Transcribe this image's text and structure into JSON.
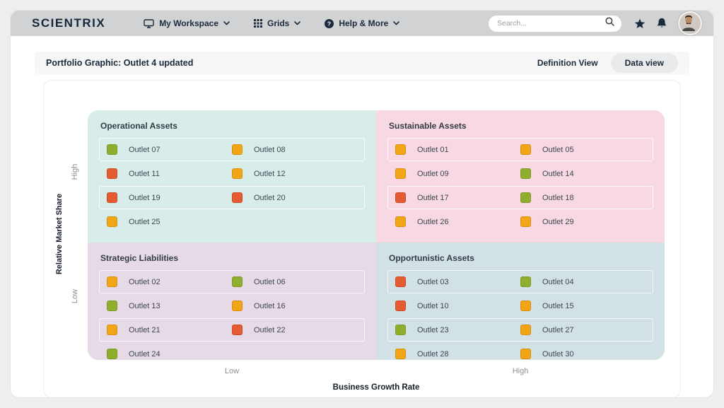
{
  "nav": {
    "logo": "SCIENTRIX",
    "items": [
      {
        "label": "My Workspace",
        "icon": "monitor-icon"
      },
      {
        "label": "Grids",
        "icon": "grid-icon"
      },
      {
        "label": "Help & More",
        "icon": "help-icon"
      }
    ],
    "search_placeholder": "Search..."
  },
  "header": {
    "title": "Portfolio Graphic: Outlet 4 updated",
    "definition_view_label": "Definition View",
    "data_view_label": "Data view"
  },
  "axes": {
    "y_label": "Relative Market Share",
    "y_high": "High",
    "y_low": "Low",
    "x_label": "Business Growth Rate",
    "x_low": "Low",
    "x_high": "High"
  },
  "colors": {
    "green": "#8fae2e",
    "green_border": "#7d9a26",
    "orange": "#f2a516",
    "orange_border": "#d88f0e",
    "red": "#e55c33",
    "red_border": "#cc4b27",
    "accent_dark": "#1b2b3d"
  },
  "quadrants": [
    {
      "title": "Operational Assets",
      "position": "top-left",
      "bg": "#d8edea",
      "items": [
        {
          "label": "Outlet 07",
          "status": "green"
        },
        {
          "label": "Outlet 08",
          "status": "orange"
        },
        {
          "label": "Outlet 11",
          "status": "red"
        },
        {
          "label": "Outlet 12",
          "status": "orange"
        },
        {
          "label": "Outlet 19",
          "status": "red"
        },
        {
          "label": "Outlet 20",
          "status": "red"
        },
        {
          "label": "Outlet 25",
          "status": "orange"
        }
      ]
    },
    {
      "title": "Sustainable Assets",
      "position": "top-right",
      "bg": "#f8d8e2",
      "items": [
        {
          "label": "Outlet 01",
          "status": "orange"
        },
        {
          "label": "Outlet 05",
          "status": "orange"
        },
        {
          "label": "Outlet 09",
          "status": "orange"
        },
        {
          "label": "Outlet 14",
          "status": "green"
        },
        {
          "label": "Outlet 17",
          "status": "red"
        },
        {
          "label": "Outlet 18",
          "status": "green"
        },
        {
          "label": "Outlet 26",
          "status": "orange"
        },
        {
          "label": "Outlet 29",
          "status": "orange"
        }
      ]
    },
    {
      "title": "Strategic Liabilities",
      "position": "bottom-left",
      "bg": "#e5dae6",
      "items": [
        {
          "label": "Outlet 02",
          "status": "orange"
        },
        {
          "label": "Outlet 06",
          "status": "green"
        },
        {
          "label": "Outlet 13",
          "status": "green"
        },
        {
          "label": "Outlet 16",
          "status": "orange"
        },
        {
          "label": "Outlet 21",
          "status": "orange"
        },
        {
          "label": "Outlet 22",
          "status": "red"
        },
        {
          "label": "Outlet 24",
          "status": "green"
        }
      ]
    },
    {
      "title": "Opportunistic Assets",
      "position": "bottom-right",
      "bg": "#d2e1e6",
      "items": [
        {
          "label": "Outlet 03",
          "status": "red"
        },
        {
          "label": "Outlet 04",
          "status": "green"
        },
        {
          "label": "Outlet 10",
          "status": "red"
        },
        {
          "label": "Outlet 15",
          "status": "orange"
        },
        {
          "label": "Outlet 23",
          "status": "green"
        },
        {
          "label": "Outlet 27",
          "status": "orange"
        },
        {
          "label": "Outlet 28",
          "status": "orange"
        },
        {
          "label": "Outlet 30",
          "status": "orange"
        }
      ]
    }
  ]
}
